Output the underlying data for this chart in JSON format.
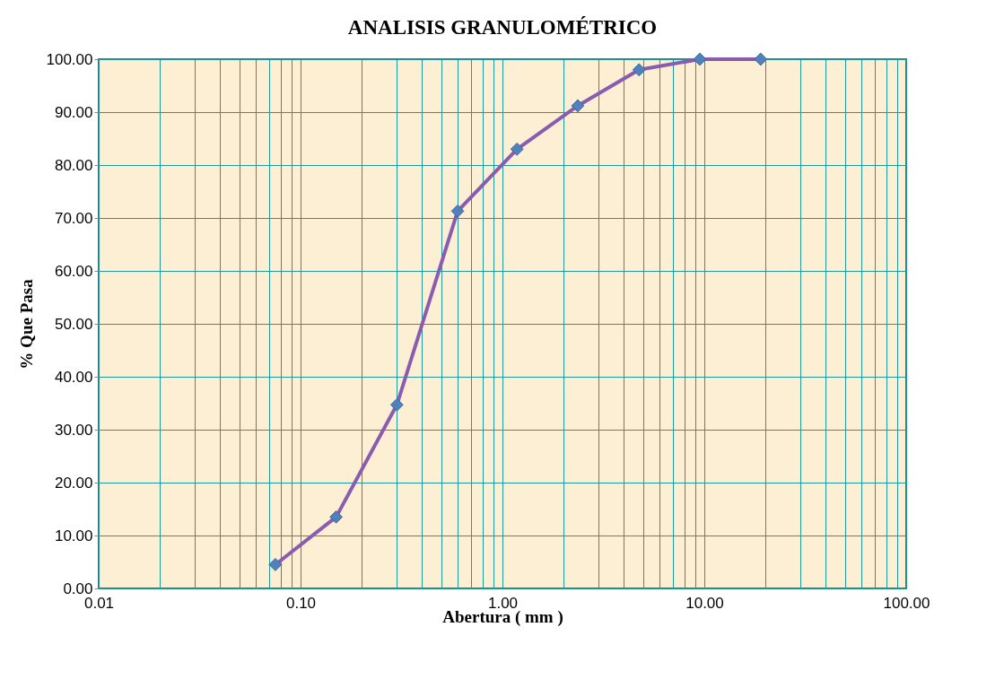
{
  "chart_data": {
    "type": "line",
    "title": "ANALISIS GRANULOMÉTRICO",
    "xlabel": "Abertura ( mm )",
    "ylabel": "% Que  Pasa",
    "x": [
      0.075,
      0.15,
      0.3,
      0.6,
      1.18,
      2.36,
      4.75,
      9.5,
      19
    ],
    "series": [
      {
        "color": "#8a5cb0",
        "colors": [
          "#4f81bd",
          "#4f81bd",
          "#4f81bd",
          "#4f81bd",
          "#4f81bd",
          "#4f81bd",
          "#4f81bd",
          "#4f81bd",
          "#4f81bd"
        ],
        "values": [
          4.5,
          13.5,
          34.7,
          71.3,
          83.0,
          91.2,
          98.0,
          100.0,
          100.0
        ]
      }
    ],
    "log": "x",
    "marker": "diamond",
    "line_style": "solid",
    "grid": true,
    "xlim": [
      0.01,
      100
    ],
    "ylim": [
      0,
      100
    ],
    "xticks": [
      0.01,
      {
        "value": 0.02,
        "label": null
      },
      {
        "value": 0.03,
        "label": null
      },
      {
        "value": 0.04,
        "label": null
      },
      {
        "value": 0.05,
        "label": null
      },
      {
        "value": 0.06,
        "label": null
      },
      {
        "value": 0.07,
        "label": null
      },
      {
        "value": 0.08,
        "label": null
      },
      {
        "value": 0.09,
        "label": null
      },
      {
        "value": 0.1,
        "label": "0.10"
      },
      {
        "value": 0.2,
        "label": null
      },
      {
        "value": 0.3,
        "label": null
      },
      {
        "value": 0.4,
        "label": null
      },
      {
        "value": 0.5,
        "label": null
      },
      {
        "value": 0.6,
        "label": null
      },
      {
        "value": 0.7,
        "label": null
      },
      {
        "value": 0.8,
        "label": null
      },
      {
        "value": 0.9,
        "label": null
      },
      {
        "value": 1,
        "label": "1.00"
      },
      {
        "value": 2,
        "label": null
      },
      {
        "value": 3,
        "label": null
      },
      {
        "value": 4,
        "label": null
      },
      {
        "value": 5,
        "label": null
      },
      {
        "value": 6,
        "label": null
      },
      {
        "value": 7,
        "label": null
      },
      {
        "value": 8,
        "label": null
      },
      {
        "value": 9,
        "label": null
      },
      {
        "value": 10,
        "label": "10.00"
      },
      {
        "value": 20,
        "label": null
      },
      {
        "value": 30,
        "label": null
      },
      {
        "value": 40,
        "label": null
      },
      {
        "value": 50,
        "label": null
      },
      {
        "value": 60,
        "label": null
      },
      {
        "value": 70,
        "label": null
      },
      {
        "value": 80,
        "label": null
      },
      {
        "value": 90,
        "label": null
      },
      {
        "value": 100,
        "label": "100.00"
      }
    ],
    "yticks": [
      {
        "value": 0,
        "label": "0.00"
      },
      {
        "value": 10,
        "label": "10.00"
      },
      {
        "value": 20,
        "label": "20.00"
      },
      {
        "value": 30,
        "label": "30.00"
      },
      {
        "value": 40,
        "label": "40.00"
      },
      {
        "value": 50,
        "label": "50.00"
      },
      {
        "value": 60,
        "label": "60.00"
      },
      {
        "value": 70,
        "label": "70.00"
      },
      {
        "value": 80,
        "label": "80.00"
      },
      {
        "value": 90,
        "label": "90.00"
      },
      {
        "value": 100,
        "label": "100.00"
      }
    ]
  }
}
